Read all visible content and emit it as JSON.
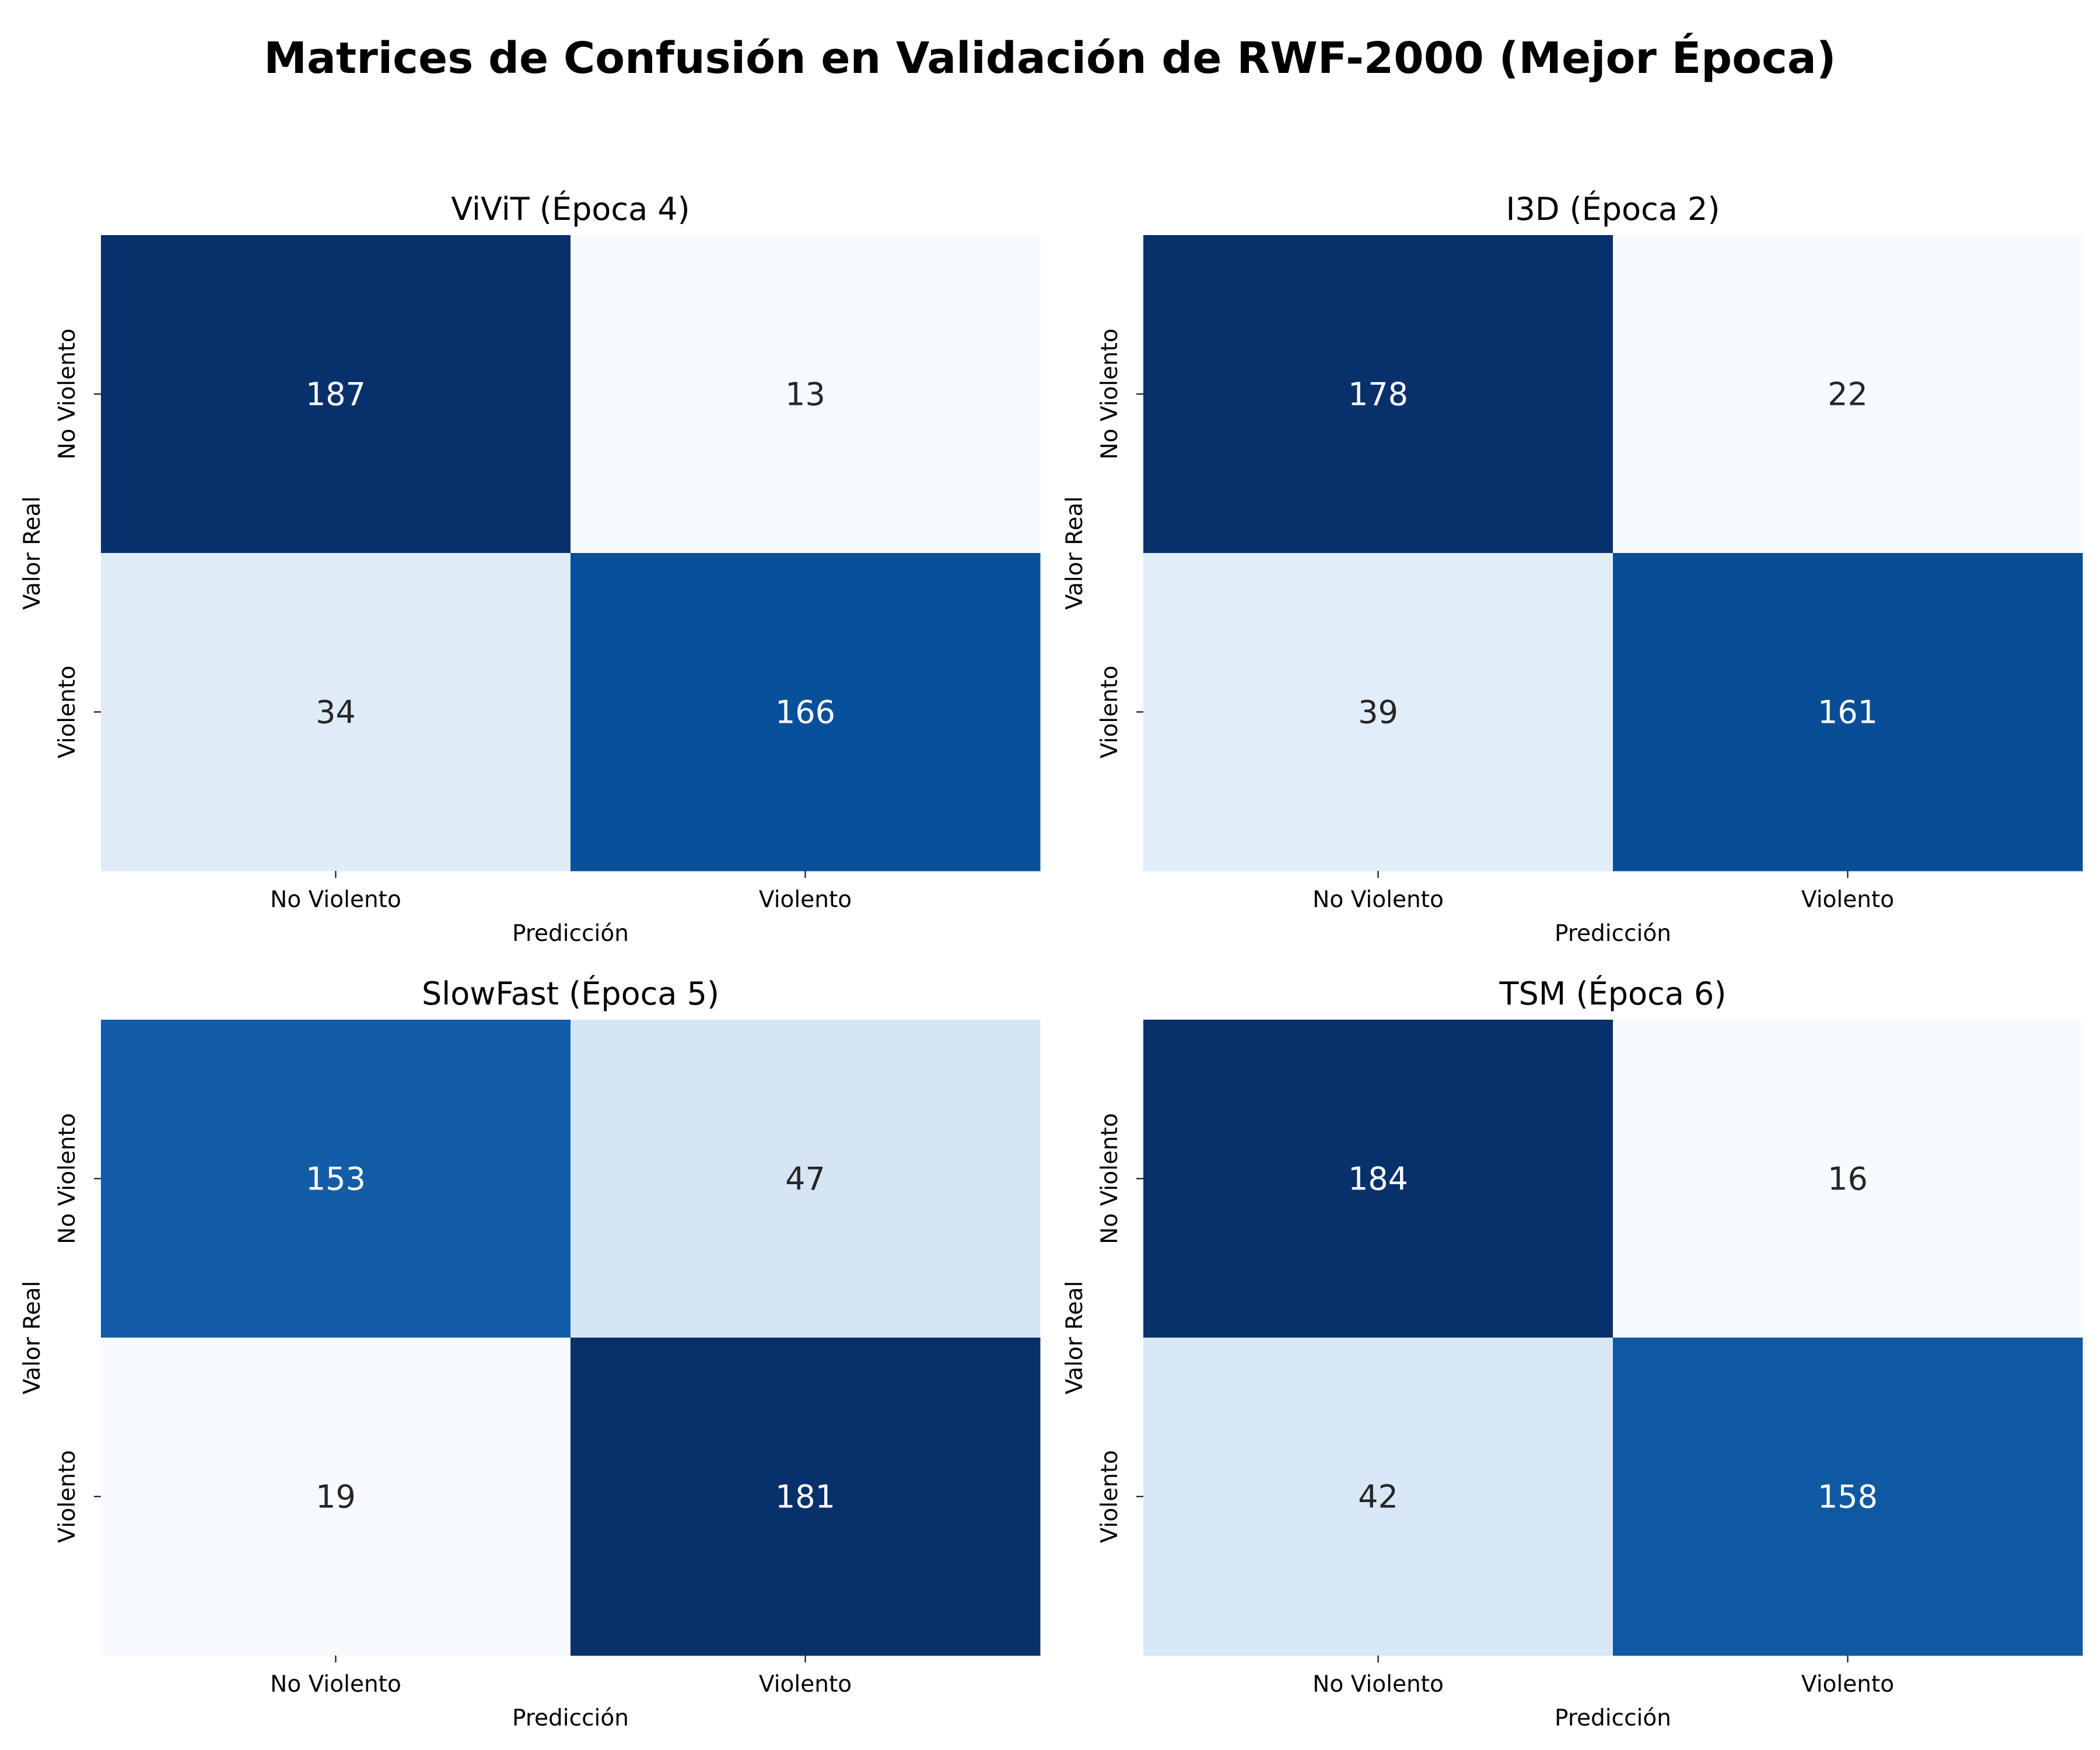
{
  "figure": {
    "title": "Matrices de Confusión en Validación de RWF-2000 (Mejor Época)"
  },
  "chart_data": [
    {
      "type": "heatmap",
      "title": "ViViT (Época 4)",
      "xlabel": "Predicción",
      "ylabel": "Valor Real",
      "x_categories": [
        "No Violento",
        "Violento"
      ],
      "y_categories": [
        "No Violento",
        "Violento"
      ],
      "values": [
        [
          187,
          13
        ],
        [
          34,
          166
        ]
      ],
      "colorscale": "Blues",
      "annotated": true
    },
    {
      "type": "heatmap",
      "title": "I3D (Época 2)",
      "xlabel": "Predicción",
      "ylabel": "Valor Real",
      "x_categories": [
        "No Violento",
        "Violento"
      ],
      "y_categories": [
        "No Violento",
        "Violento"
      ],
      "values": [
        [
          178,
          22
        ],
        [
          39,
          161
        ]
      ],
      "colorscale": "Blues",
      "annotated": true
    },
    {
      "type": "heatmap",
      "title": "SlowFast (Época 5)",
      "xlabel": "Predicción",
      "ylabel": "Valor Real",
      "x_categories": [
        "No Violento",
        "Violento"
      ],
      "y_categories": [
        "No Violento",
        "Violento"
      ],
      "values": [
        [
          153,
          47
        ],
        [
          19,
          181
        ]
      ],
      "colorscale": "Blues",
      "annotated": true
    },
    {
      "type": "heatmap",
      "title": "TSM (Época 6)",
      "xlabel": "Predicción",
      "ylabel": "Valor Real",
      "x_categories": [
        "No Violento",
        "Violento"
      ],
      "y_categories": [
        "No Violento",
        "Violento"
      ],
      "values": [
        [
          184,
          16
        ],
        [
          42,
          158
        ]
      ],
      "colorscale": "Blues",
      "annotated": true
    }
  ]
}
